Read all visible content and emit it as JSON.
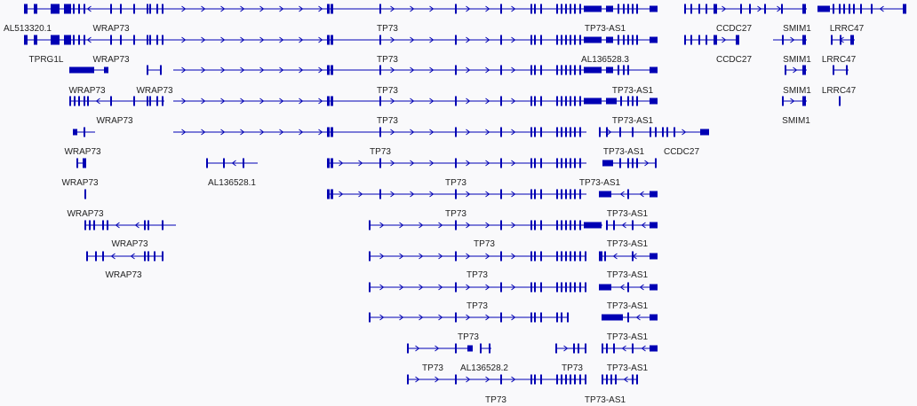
{
  "track": {
    "color": "#0000b4",
    "label_color": "#222222",
    "background": "#f9f9fb"
  },
  "labels": [
    {
      "text": "AL513320.1"
    },
    {
      "text": "WRAP73"
    },
    {
      "text": "TP73"
    },
    {
      "text": "TP73-AS1"
    },
    {
      "text": "CCDC27"
    },
    {
      "text": "SMIM1"
    },
    {
      "text": "LRRC47"
    },
    {
      "text": "TPRG1L"
    },
    {
      "text": "WRAP73"
    },
    {
      "text": "TP73"
    },
    {
      "text": "AL136528.3"
    },
    {
      "text": "CCDC27"
    },
    {
      "text": "SMIM1"
    },
    {
      "text": "LRRC47"
    },
    {
      "text": "WRAP73"
    },
    {
      "text": "WRAP73"
    },
    {
      "text": "TP73"
    },
    {
      "text": "TP73-AS1"
    },
    {
      "text": "SMIM1"
    },
    {
      "text": "LRRC47"
    },
    {
      "text": "WRAP73"
    },
    {
      "text": "TP73"
    },
    {
      "text": "TP73-AS1"
    },
    {
      "text": "SMIM1"
    },
    {
      "text": "WRAP73"
    },
    {
      "text": "TP73"
    },
    {
      "text": "TP73-AS1"
    },
    {
      "text": "CCDC27"
    },
    {
      "text": "WRAP73"
    },
    {
      "text": "AL136528.1"
    },
    {
      "text": "TP73"
    },
    {
      "text": "TP73-AS1"
    },
    {
      "text": "WRAP73"
    },
    {
      "text": "TP73"
    },
    {
      "text": "TP73-AS1"
    },
    {
      "text": "WRAP73"
    },
    {
      "text": "TP73"
    },
    {
      "text": "TP73-AS1"
    },
    {
      "text": "WRAP73"
    },
    {
      "text": "TP73"
    },
    {
      "text": "TP73-AS1"
    },
    {
      "text": "TP73"
    },
    {
      "text": "TP73-AS1"
    },
    {
      "text": "TP73"
    },
    {
      "text": "TP73-AS1"
    },
    {
      "text": "TP73"
    },
    {
      "text": "AL136528.2"
    },
    {
      "text": "TP73"
    },
    {
      "text": "TP73-AS1"
    },
    {
      "text": "TP73"
    },
    {
      "text": "TP73-AS1"
    }
  ]
}
